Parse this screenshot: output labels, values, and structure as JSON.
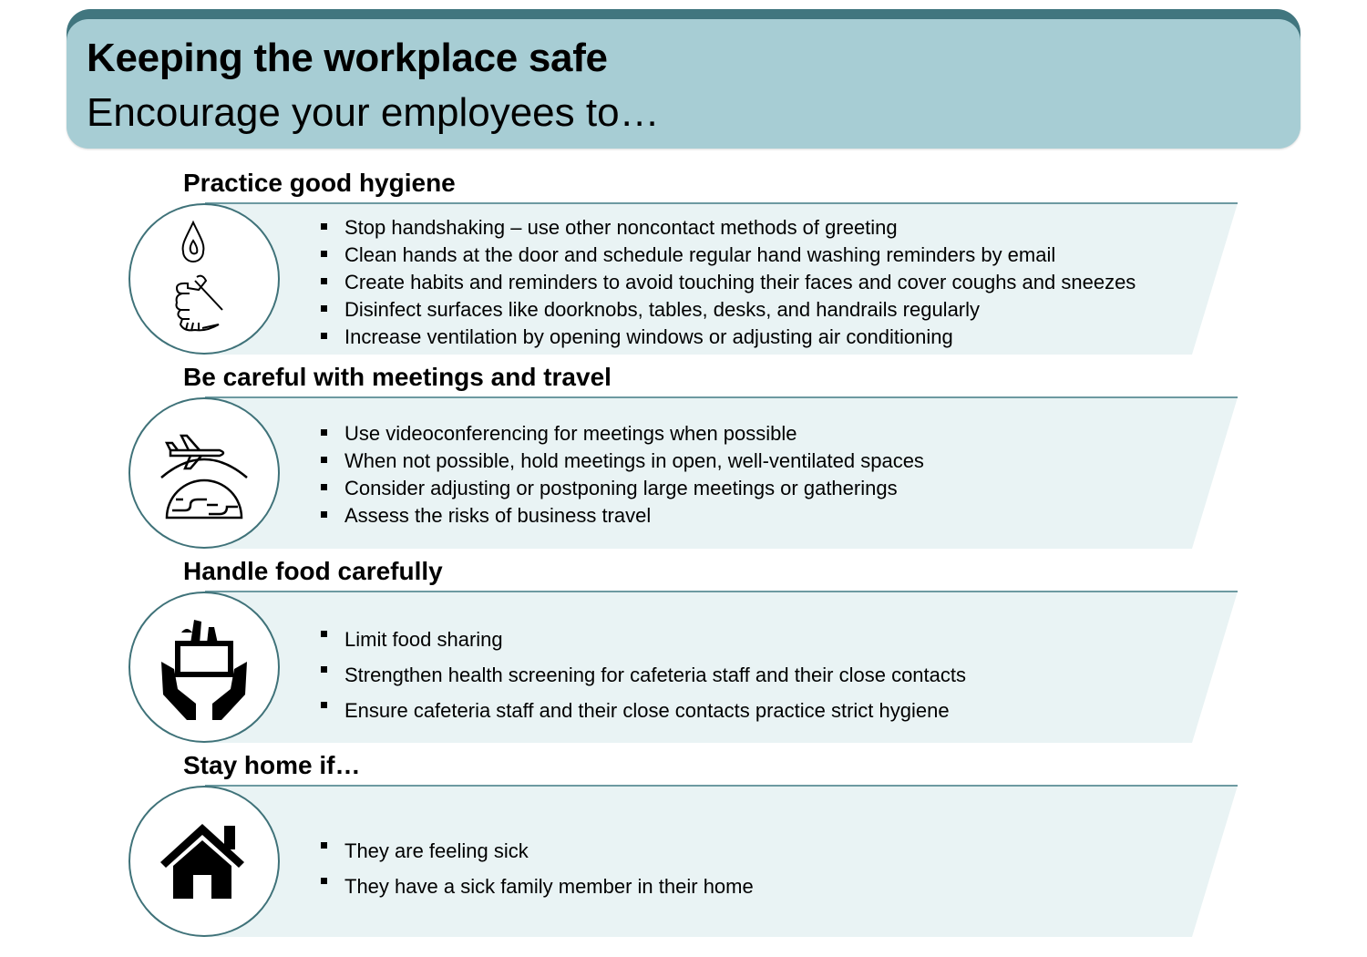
{
  "header": {
    "title": "Keeping the workplace safe",
    "subtitle": "Encourage your employees to…"
  },
  "colors": {
    "header_bar": "#41767f",
    "header_bg": "#a7cdd4",
    "band": "#e9f3f4",
    "accent": "#3f7279"
  },
  "sections": [
    {
      "title": "Practice good hygiene",
      "icon": "handwashing-icon",
      "items": [
        "Stop handshaking – use other noncontact methods of greeting",
        "Clean hands at the door and schedule regular hand washing reminders by email",
        "Create habits and reminders to avoid touching their faces and cover coughs and sneezes",
        "Disinfect surfaces like doorknobs, tables, desks, and handrails regularly",
        "Increase ventilation by opening windows or adjusting air conditioning"
      ]
    },
    {
      "title": "Be careful with meetings and travel",
      "icon": "airplane-globe-icon",
      "items": [
        "Use videoconferencing for meetings when possible",
        "When not possible, hold meetings in open, well-ventilated spaces",
        "Consider adjusting or postponing large meetings or gatherings",
        "Assess the risks of business travel"
      ]
    },
    {
      "title": "Handle food carefully",
      "icon": "food-hands-icon",
      "items": [
        "Limit food sharing",
        "Strengthen health screening for cafeteria staff and their close contacts",
        "Ensure cafeteria staff and their close contacts practice strict hygiene"
      ]
    },
    {
      "title": "Stay home if…",
      "icon": "house-icon",
      "items": [
        "They are feeling sick",
        "They have a sick family member in their home"
      ]
    }
  ]
}
